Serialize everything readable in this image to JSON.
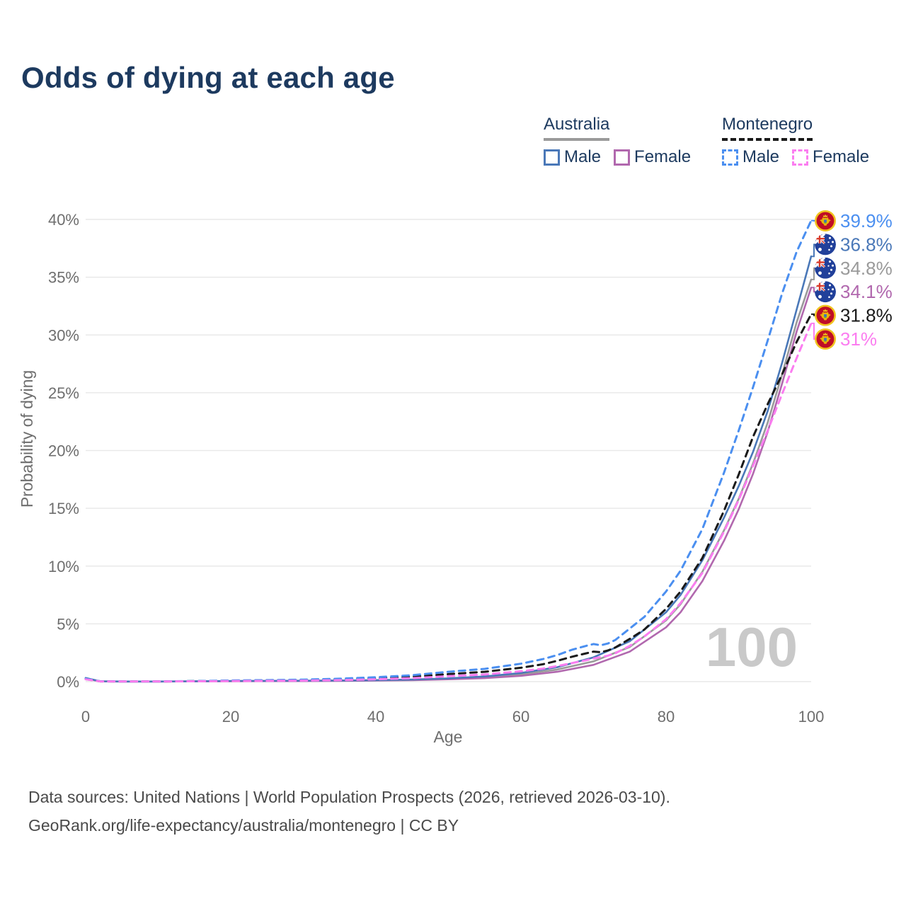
{
  "title": "Odds of dying at each age",
  "legend": {
    "groups": [
      {
        "country": "Australia",
        "line_color": "#9a9a9a",
        "line_style": "solid",
        "items": [
          {
            "label": "Male",
            "color": "#4a78b8",
            "style": "solid"
          },
          {
            "label": "Female",
            "color": "#b168ae",
            "style": "solid"
          }
        ]
      },
      {
        "country": "Montenegro",
        "line_color": "#1a1a1a",
        "line_style": "dashed",
        "items": [
          {
            "label": "Male",
            "color": "#4b8ff0",
            "style": "dashed"
          },
          {
            "label": "Female",
            "color": "#fb7df0",
            "style": "dashed"
          }
        ]
      }
    ]
  },
  "watermark": "100",
  "footer": {
    "line1": "Data sources: United Nations | World Population Prospects (2026, retrieved 2026-03-10).",
    "line2": "GeoRank.org/life-expectancy/australia/montenegro | CC BY"
  },
  "chart_data": {
    "type": "line",
    "title": "Odds of dying at each age",
    "xlabel": "Age",
    "ylabel": "Probability of dying",
    "xlim": [
      0,
      100
    ],
    "ylim_percent": [
      0,
      40
    ],
    "grid": "horizontal",
    "legend_position": "top-right",
    "x_ticks": [
      0,
      20,
      40,
      60,
      80,
      100
    ],
    "y_ticks_percent": [
      0,
      5,
      10,
      15,
      20,
      25,
      30,
      35,
      40
    ],
    "y_tick_labels": [
      "0%",
      "5%",
      "10%",
      "15%",
      "20%",
      "25%",
      "30%",
      "35%",
      "40%"
    ],
    "hover_age_indicator": "100",
    "series": [
      {
        "name": "Australia",
        "slug": "australia-total",
        "country": "Australia",
        "sex": "both",
        "color": "#9a9a9a",
        "dashed": false,
        "end_label": "34.8%",
        "flag": "australia",
        "points": [
          [
            0,
            0.3
          ],
          [
            2,
            0.025
          ],
          [
            5,
            0.01
          ],
          [
            10,
            0.01
          ],
          [
            15,
            0.025
          ],
          [
            20,
            0.045
          ],
          [
            25,
            0.055
          ],
          [
            30,
            0.065
          ],
          [
            35,
            0.085
          ],
          [
            40,
            0.11
          ],
          [
            45,
            0.155
          ],
          [
            50,
            0.24
          ],
          [
            55,
            0.37
          ],
          [
            60,
            0.62
          ],
          [
            65,
            1.05
          ],
          [
            70,
            1.75
          ],
          [
            75,
            3.0
          ],
          [
            80,
            5.3
          ],
          [
            82,
            6.7
          ],
          [
            85,
            9.5
          ],
          [
            88,
            13.1
          ],
          [
            90,
            15.8
          ],
          [
            92,
            18.9
          ],
          [
            94,
            22.4
          ],
          [
            96,
            26.6
          ],
          [
            98,
            31.1
          ],
          [
            100,
            34.8
          ]
        ]
      },
      {
        "name": "Australia Female",
        "slug": "australia-female",
        "country": "Australia",
        "sex": "female",
        "color": "#b168ae",
        "dashed": false,
        "end_label": "34.1%",
        "flag": "australia",
        "points": [
          [
            0,
            0.27
          ],
          [
            2,
            0.02
          ],
          [
            5,
            0.01
          ],
          [
            10,
            0.01
          ],
          [
            15,
            0.02
          ],
          [
            20,
            0.03
          ],
          [
            25,
            0.04
          ],
          [
            30,
            0.05
          ],
          [
            35,
            0.07
          ],
          [
            40,
            0.09
          ],
          [
            45,
            0.13
          ],
          [
            50,
            0.2
          ],
          [
            55,
            0.3
          ],
          [
            60,
            0.5
          ],
          [
            65,
            0.85
          ],
          [
            70,
            1.45
          ],
          [
            75,
            2.6
          ],
          [
            80,
            4.7
          ],
          [
            82,
            6.0
          ],
          [
            85,
            8.7
          ],
          [
            88,
            12.2
          ],
          [
            90,
            14.9
          ],
          [
            92,
            18.0
          ],
          [
            94,
            21.6
          ],
          [
            96,
            25.8
          ],
          [
            98,
            30.3
          ],
          [
            100,
            34.1
          ]
        ]
      },
      {
        "name": "Australia Male",
        "slug": "australia-male",
        "country": "Australia",
        "sex": "male",
        "color": "#4a78b8",
        "dashed": false,
        "end_label": "36.8%",
        "flag": "australia",
        "points": [
          [
            0,
            0.32
          ],
          [
            2,
            0.03
          ],
          [
            5,
            0.01
          ],
          [
            10,
            0.01
          ],
          [
            15,
            0.03
          ],
          [
            20,
            0.06
          ],
          [
            25,
            0.07
          ],
          [
            30,
            0.08
          ],
          [
            35,
            0.1
          ],
          [
            40,
            0.13
          ],
          [
            45,
            0.18
          ],
          [
            50,
            0.28
          ],
          [
            55,
            0.45
          ],
          [
            60,
            0.75
          ],
          [
            65,
            1.25
          ],
          [
            70,
            2.1
          ],
          [
            75,
            3.5
          ],
          [
            80,
            6.0
          ],
          [
            82,
            7.5
          ],
          [
            85,
            10.5
          ],
          [
            88,
            14.2
          ],
          [
            90,
            16.9
          ],
          [
            92,
            19.9
          ],
          [
            94,
            23.4
          ],
          [
            96,
            27.6
          ],
          [
            98,
            32.2
          ],
          [
            100,
            36.8
          ]
        ]
      },
      {
        "name": "Montenegro",
        "slug": "montenegro-total",
        "country": "Montenegro",
        "sex": "both",
        "color": "#1a1a1a",
        "dashed": true,
        "end_label": "31.8%",
        "flag": "montenegro",
        "points": [
          [
            0,
            0.22
          ],
          [
            2,
            0.025
          ],
          [
            5,
            0.015
          ],
          [
            10,
            0.015
          ],
          [
            15,
            0.04
          ],
          [
            20,
            0.08
          ],
          [
            25,
            0.1
          ],
          [
            30,
            0.13
          ],
          [
            35,
            0.19
          ],
          [
            40,
            0.28
          ],
          [
            45,
            0.42
          ],
          [
            50,
            0.65
          ],
          [
            55,
            0.85
          ],
          [
            60,
            1.2
          ],
          [
            63,
            1.5
          ],
          [
            65,
            1.8
          ],
          [
            67,
            2.15
          ],
          [
            69,
            2.45
          ],
          [
            70,
            2.6
          ],
          [
            71,
            2.55
          ],
          [
            72,
            2.7
          ],
          [
            73,
            2.95
          ],
          [
            75,
            3.7
          ],
          [
            77,
            4.5
          ],
          [
            80,
            6.3
          ],
          [
            82,
            7.8
          ],
          [
            85,
            10.7
          ],
          [
            88,
            14.8
          ],
          [
            90,
            17.9
          ],
          [
            92,
            21.2
          ],
          [
            94,
            24.0
          ],
          [
            96,
            26.6
          ],
          [
            98,
            29.4
          ],
          [
            100,
            31.8
          ]
        ]
      },
      {
        "name": "Montenegro Male",
        "slug": "montenegro-male",
        "country": "Montenegro",
        "sex": "male",
        "color": "#4b8ff0",
        "dashed": true,
        "end_label": "39.9%",
        "flag": "montenegro",
        "points": [
          [
            0,
            0.25
          ],
          [
            2,
            0.03
          ],
          [
            5,
            0.02
          ],
          [
            10,
            0.02
          ],
          [
            15,
            0.05
          ],
          [
            20,
            0.1
          ],
          [
            25,
            0.13
          ],
          [
            30,
            0.17
          ],
          [
            35,
            0.25
          ],
          [
            40,
            0.38
          ],
          [
            45,
            0.55
          ],
          [
            50,
            0.85
          ],
          [
            55,
            1.1
          ],
          [
            60,
            1.55
          ],
          [
            63,
            1.95
          ],
          [
            65,
            2.3
          ],
          [
            67,
            2.75
          ],
          [
            69,
            3.1
          ],
          [
            70,
            3.25
          ],
          [
            71,
            3.15
          ],
          [
            72,
            3.3
          ],
          [
            73,
            3.6
          ],
          [
            75,
            4.6
          ],
          [
            77,
            5.6
          ],
          [
            80,
            7.8
          ],
          [
            82,
            9.6
          ],
          [
            85,
            13.2
          ],
          [
            88,
            18.1
          ],
          [
            90,
            21.7
          ],
          [
            92,
            25.5
          ],
          [
            94,
            29.5
          ],
          [
            96,
            33.6
          ],
          [
            98,
            37.2
          ],
          [
            100,
            39.9
          ]
        ]
      },
      {
        "name": "Montenegro Female",
        "slug": "montenegro-female",
        "country": "Montenegro",
        "sex": "female",
        "color": "#fb7df0",
        "dashed": true,
        "end_label": "31%",
        "flag": "montenegro",
        "points": [
          [
            0,
            0.2
          ],
          [
            2,
            0.02
          ],
          [
            5,
            0.01
          ],
          [
            10,
            0.01
          ],
          [
            15,
            0.03
          ],
          [
            20,
            0.05
          ],
          [
            25,
            0.07
          ],
          [
            30,
            0.09
          ],
          [
            35,
            0.13
          ],
          [
            40,
            0.2
          ],
          [
            45,
            0.3
          ],
          [
            50,
            0.47
          ],
          [
            55,
            0.62
          ],
          [
            60,
            0.9
          ],
          [
            63,
            1.12
          ],
          [
            65,
            1.35
          ],
          [
            67,
            1.6
          ],
          [
            69,
            1.85
          ],
          [
            70,
            2.0
          ],
          [
            72,
            2.25
          ],
          [
            73,
            2.45
          ],
          [
            75,
            3.1
          ],
          [
            77,
            3.9
          ],
          [
            80,
            5.4
          ],
          [
            82,
            6.8
          ],
          [
            85,
            9.4
          ],
          [
            88,
            13.0
          ],
          [
            90,
            15.7
          ],
          [
            92,
            18.7
          ],
          [
            94,
            21.7
          ],
          [
            96,
            24.9
          ],
          [
            98,
            28.0
          ],
          [
            100,
            31.0
          ]
        ]
      }
    ]
  }
}
